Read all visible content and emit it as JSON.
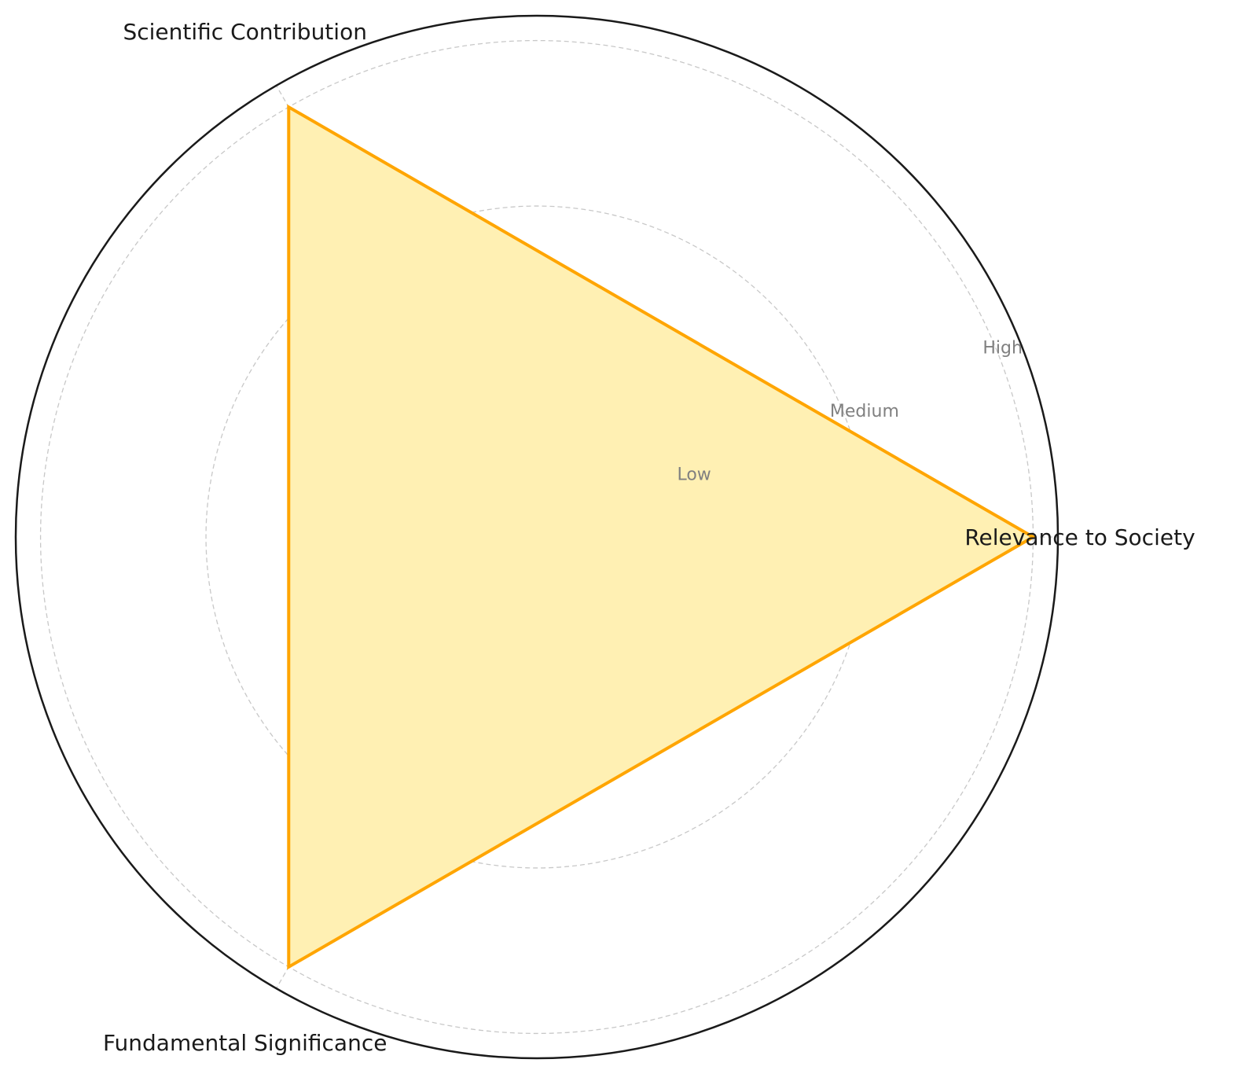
{
  "chart_data": {
    "type": "radar",
    "categories": [
      "Relevance to Society",
      "Scientific Contribution",
      "Fundamental Significance"
    ],
    "series": [
      {
        "values": [
          3,
          3,
          3
        ],
        "line_color": "#FFA500",
        "fill_color": "#FFF0B3"
      }
    ],
    "radial_ticks": [
      {
        "value": 1,
        "label": "Low"
      },
      {
        "value": 2,
        "label": "Medium"
      },
      {
        "value": 3,
        "label": "High"
      }
    ],
    "rlim": [
      0,
      3.15
    ],
    "grid": true,
    "grid_style": "dashed",
    "grid_color": "#c8c8c8"
  }
}
